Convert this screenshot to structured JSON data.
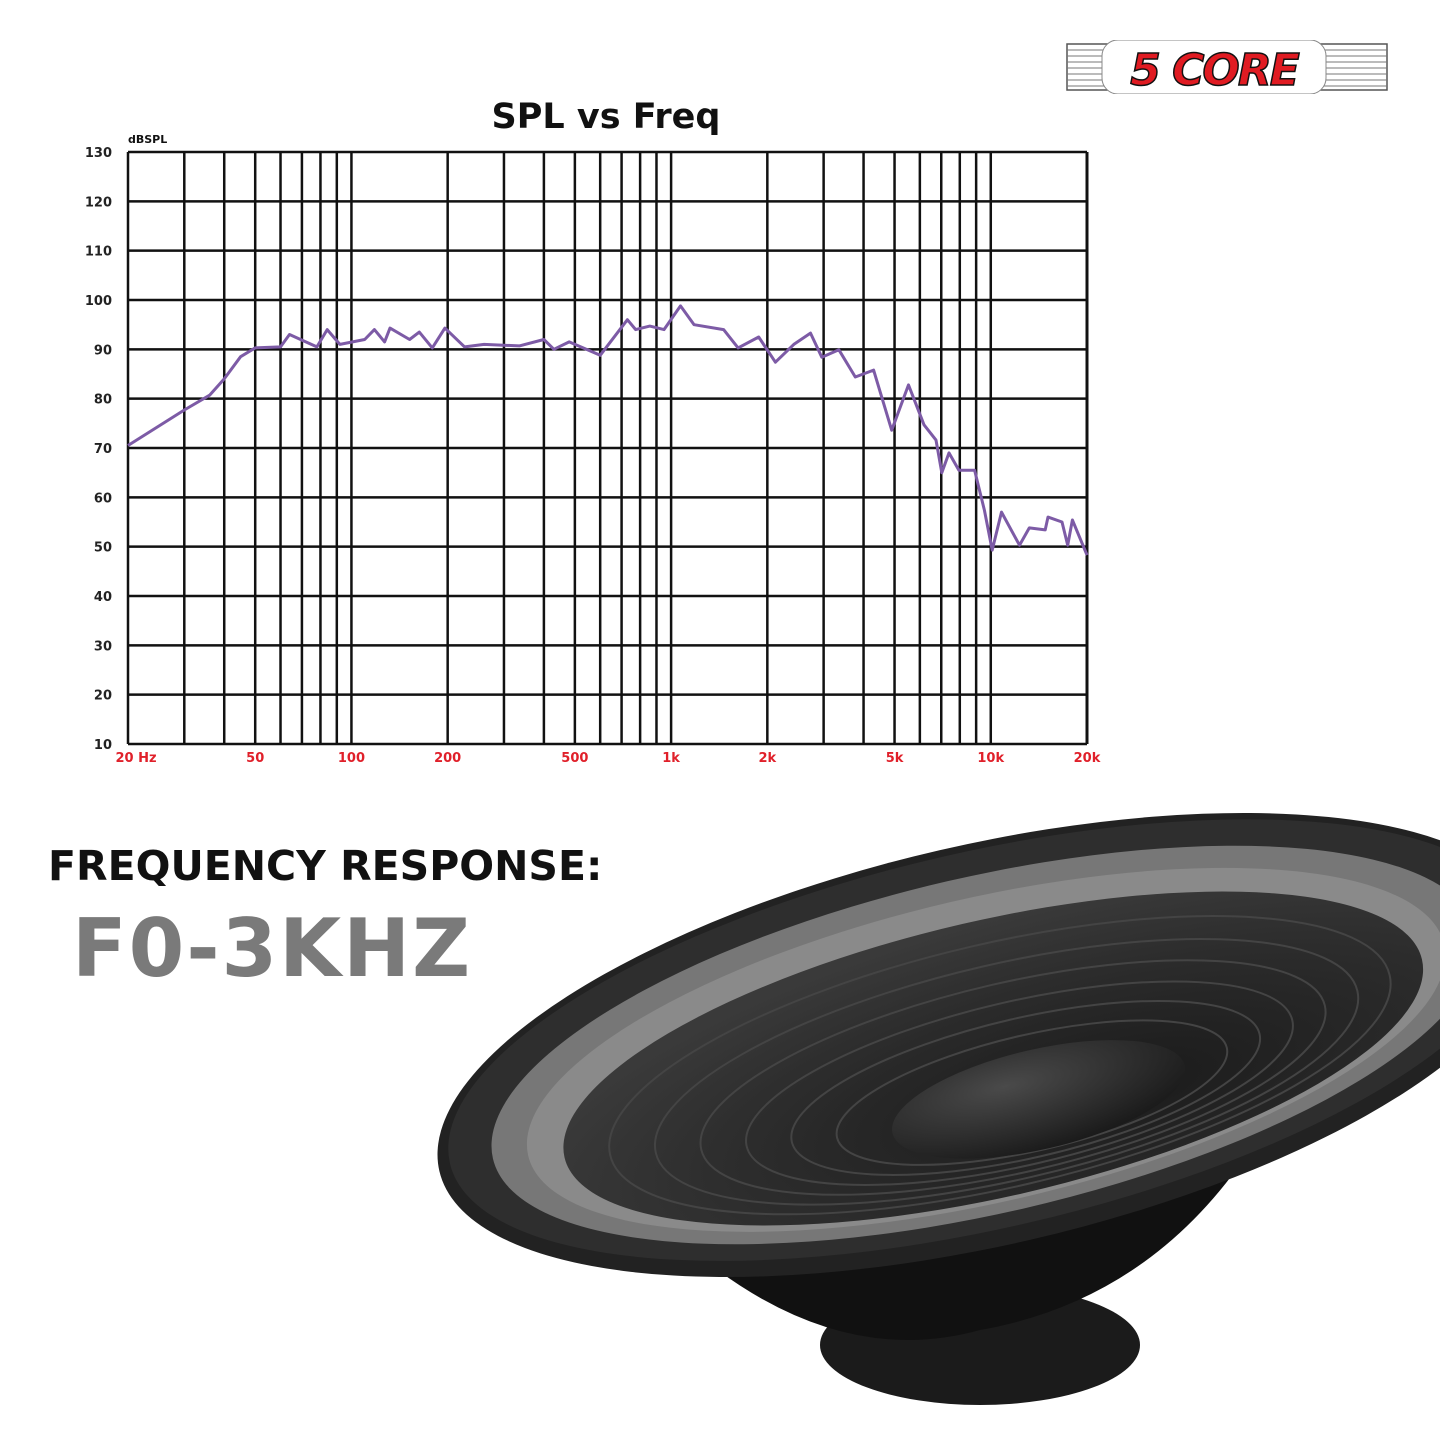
{
  "brand": {
    "logo_text": "5 CORE",
    "logo_color": "#e01b22"
  },
  "chart_data": {
    "type": "line",
    "title": "SPL vs Freq",
    "ylabel": "dBSPL",
    "xlabel": "",
    "x_scale": "log",
    "xlim": [
      20,
      20000
    ],
    "ylim": [
      10,
      130
    ],
    "grid": true,
    "y_ticks": [
      10,
      20,
      30,
      40,
      50,
      60,
      70,
      80,
      90,
      100,
      110,
      120,
      130
    ],
    "x_ticks": [
      {
        "value": 20,
        "label": "20 Hz"
      },
      {
        "value": 50,
        "label": "50"
      },
      {
        "value": 100,
        "label": "100"
      },
      {
        "value": 200,
        "label": "200"
      },
      {
        "value": 500,
        "label": "500"
      },
      {
        "value": 1000,
        "label": "1k"
      },
      {
        "value": 2000,
        "label": "2k"
      },
      {
        "value": 5000,
        "label": "5k"
      },
      {
        "value": 10000,
        "label": "10k"
      },
      {
        "value": 20000,
        "label": "20k"
      }
    ],
    "tick_label_color": "#e0202a",
    "line_color": "#7d5ba6",
    "series": [
      {
        "x": [
          20,
          30,
          36,
          40,
          45,
          50,
          60,
          64,
          78,
          84,
          92,
          110,
          118,
          127,
          132,
          152,
          163,
          179,
          196,
          226,
          260,
          335,
          400,
          430,
          480,
          600,
          730,
          775,
          858,
          950,
          1070,
          1180,
          1460,
          1620,
          1880,
          2120,
          2420,
          2730,
          2960,
          3350,
          3770,
          4300,
          4900,
          5530,
          6180,
          6740,
          7030,
          7400,
          7950,
          8900,
          9550,
          10100,
          10800,
          12300,
          13200,
          14800,
          15100,
          16700,
          17400,
          18000,
          20000
        ],
        "y": [
          70.5,
          77.7,
          80.7,
          84,
          88.5,
          90.3,
          90.5,
          93,
          90.5,
          94,
          91,
          92,
          94,
          91.5,
          94.3,
          92,
          93.5,
          90.3,
          94.3,
          90.5,
          91,
          90.7,
          92,
          90,
          91.5,
          88.8,
          96,
          94,
          94.7,
          94,
          98.8,
          95,
          94,
          90.3,
          92.5,
          87.4,
          91,
          93.3,
          88.4,
          89.9,
          84.4,
          85.8,
          73.6,
          82.8,
          74.7,
          71.6,
          65,
          69,
          65.5,
          65.5,
          57.4,
          49.3,
          57,
          50.3,
          53.8,
          53.4,
          56,
          55,
          50.3,
          55.4,
          48.3
        ]
      }
    ]
  },
  "spec": {
    "label": "FREQUENCY RESPONSE:",
    "value": "F0-3KHZ"
  }
}
